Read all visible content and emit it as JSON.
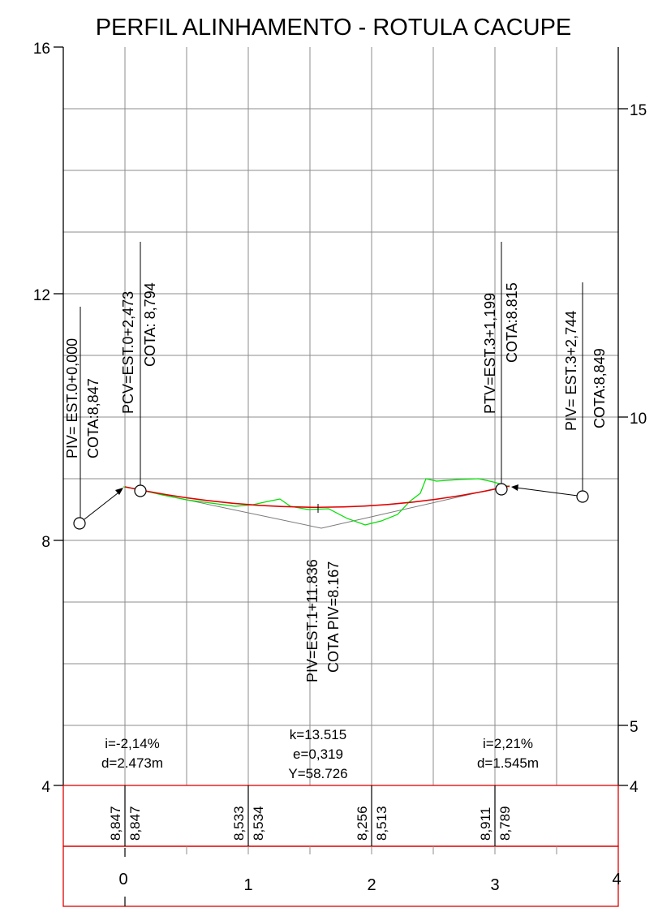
{
  "title": "PERFIL ALINHAMENTO - ROTULA CACUPE",
  "colors": {
    "grid": "#8c8c8c",
    "axis": "#000000",
    "terrain": "#00e000",
    "curve": "#e00000",
    "tangent": "#7a7a7a",
    "table": "#e00000",
    "text": "#000000"
  },
  "left_axis": {
    "labels": [
      "16",
      "12",
      "8",
      "4"
    ]
  },
  "right_axis": {
    "labels": [
      "15",
      "10",
      "5",
      "4"
    ]
  },
  "stations": {
    "labels": [
      "0",
      "1",
      "2",
      "3",
      "4"
    ]
  },
  "points": [
    {
      "label": "PIV= EST.0+0,000",
      "cota": "COTA:8,847"
    },
    {
      "label": "PCV=EST.0+2,473",
      "cota": "COTA: 8,794"
    },
    {
      "label": "PTV=EST.3+1,199",
      "cota": "COTA:8.815"
    },
    {
      "label": "PIV= EST.3+2,744",
      "cota": "COTA:8,849"
    },
    {
      "label": "PIV=EST.1+11.836",
      "cota": "COTA PIV=8.167"
    }
  ],
  "grades": {
    "left": {
      "i": "i=-2,14%",
      "d": "d=2.473m"
    },
    "curve": {
      "k": "k=13.515",
      "e": "e=0,319",
      "y": "Y=58.726"
    },
    "right": {
      "i": "i=2,21%",
      "d": "d=1.545m"
    }
  },
  "elevations": {
    "terrain": [
      "8,847",
      "8,533",
      "8,256",
      "8,911"
    ],
    "project": [
      "8,847",
      "8,534",
      "8,513",
      "8,789"
    ]
  }
}
